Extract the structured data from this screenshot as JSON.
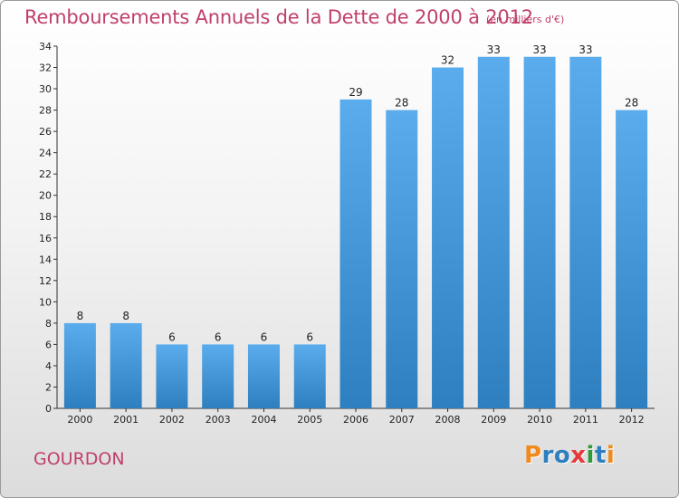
{
  "header": {
    "title": "Remboursements Annuels de la Dette de 2000 à 2012",
    "unit_note": "(en milliers d'€)"
  },
  "footer": {
    "commune": "GOURDON",
    "logo_text": "Proxiti"
  },
  "colors": {
    "accent_text": "#c0406a",
    "bar_top": "#5aacec",
    "bar_bottom": "#2e7fbf",
    "logo_letters": [
      "#f08a1c",
      "#2e7fbf",
      "#2e7fbf",
      "#e53a3a",
      "#2e9a3a",
      "#2e7fbf",
      "#f08a1c"
    ]
  },
  "chart_data": {
    "type": "bar",
    "title": "Remboursements Annuels de la Dette de 2000 à 2012",
    "subtitle": "(en milliers d'€)",
    "xlabel": "",
    "ylabel": "",
    "categories": [
      "2000",
      "2001",
      "2002",
      "2003",
      "2004",
      "2005",
      "2006",
      "2007",
      "2008",
      "2009",
      "2010",
      "2011",
      "2012"
    ],
    "values": [
      8,
      8,
      6,
      6,
      6,
      6,
      29,
      28,
      32,
      33,
      33,
      33,
      28
    ],
    "data_labels": [
      "8",
      "8",
      "6",
      "6",
      "6",
      "6",
      "29",
      "28",
      "32",
      "33",
      "33",
      "33",
      "28"
    ],
    "ylim": [
      0,
      34
    ],
    "yticks": [
      0,
      2,
      4,
      6,
      8,
      10,
      12,
      14,
      16,
      18,
      20,
      22,
      24,
      26,
      28,
      30,
      32,
      34
    ],
    "grid": false,
    "legend": "none"
  }
}
